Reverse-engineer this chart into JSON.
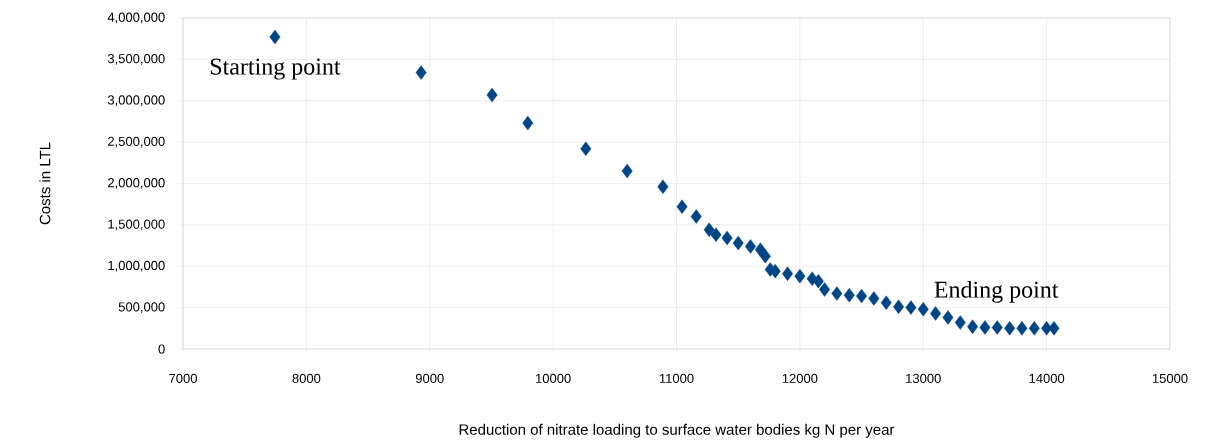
{
  "chart_data": {
    "type": "scatter",
    "xlabel": "Reduction of nitrate loading to surface water bodies kg N per year",
    "ylabel": "Costs in LTL",
    "x": [
      7745,
      8930,
      9505,
      9795,
      10265,
      10600,
      10890,
      11045,
      11160,
      11265,
      11320,
      11410,
      11500,
      11600,
      11680,
      11720,
      11760,
      11800,
      11900,
      12000,
      12100,
      12150,
      12200,
      12300,
      12400,
      12500,
      12600,
      12700,
      12800,
      12900,
      13000,
      13100,
      13200,
      13300,
      13400,
      13500,
      13600,
      13700,
      13800,
      13900,
      14000,
      14060
    ],
    "values": [
      3770000,
      3340000,
      3070000,
      2730000,
      2420000,
      2150000,
      1960000,
      1720000,
      1600000,
      1440000,
      1380000,
      1340000,
      1280000,
      1240000,
      1200000,
      1120000,
      960000,
      940000,
      910000,
      880000,
      850000,
      820000,
      720000,
      670000,
      650000,
      640000,
      610000,
      560000,
      510000,
      500000,
      480000,
      430000,
      380000,
      320000,
      270000,
      260000,
      260000,
      250000,
      250000,
      250000,
      250000,
      250000
    ],
    "color": "#004586",
    "marker": "diamond",
    "grid": true,
    "xlim": [
      7000,
      15000
    ],
    "xticks": [
      7000,
      8000,
      9000,
      10000,
      11000,
      12000,
      13000,
      14000,
      15000
    ],
    "ylim": [
      0,
      4000000
    ],
    "yticks": [
      {
        "value": 0,
        "label": "0"
      },
      {
        "value": 500000,
        "label": "500,000"
      },
      {
        "value": 1000000,
        "label": "1,000,000"
      },
      {
        "value": 1500000,
        "label": "1,500,000"
      },
      {
        "value": 2000000,
        "label": "2,000,000"
      },
      {
        "value": 2500000,
        "label": "2,500,000"
      },
      {
        "value": 3000000,
        "label": "3,000,000"
      },
      {
        "value": 3500000,
        "label": "3,500,000"
      },
      {
        "value": 4000000,
        "label": "4,000,000"
      }
    ],
    "annotations": [
      {
        "text": "Starting point",
        "x": 7745,
        "y": 3770000
      },
      {
        "text": "Ending point",
        "x": 14060,
        "y": 250000
      }
    ]
  }
}
